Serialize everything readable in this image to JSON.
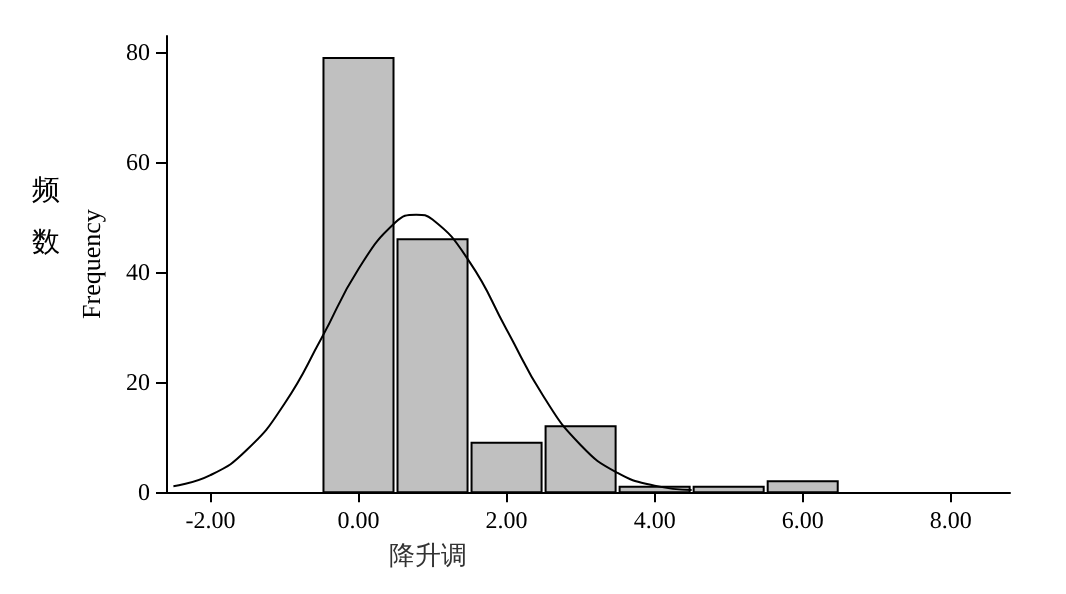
{
  "chart_data": {
    "type": "histogram",
    "xlabel": "降升调",
    "ylabel": "Frequency",
    "annotations": [
      "频数"
    ],
    "bins": [
      -0.5,
      0.5,
      1.5,
      2.5,
      3.5,
      4.5,
      5.5,
      6.5
    ],
    "values": [
      79,
      46,
      9,
      12,
      1,
      1,
      2
    ],
    "color": "#c0c0c0",
    "series": [
      {
        "type": "line",
        "color": "#000000",
        "marker": "none",
        "x": [
          -2.5,
          -2,
          -1.5,
          -1,
          -0.5,
          0,
          0.5,
          0.78,
          1,
          1.5,
          2,
          2.5,
          3,
          3.5,
          4,
          4.5
        ],
        "values": [
          1.1,
          3.1,
          7.8,
          16.1,
          28,
          40.6,
          49.1,
          50.5,
          49.6,
          41.9,
          29.6,
          17.4,
          8.6,
          3.5,
          1.2,
          0.4
        ]
      }
    ],
    "xlim": [
      -2.6,
      8.8
    ],
    "xticks": [
      {
        "value": -2,
        "label": "-2.00"
      },
      {
        "value": 0,
        "label": "0.00"
      },
      {
        "value": 2,
        "label": "2.00"
      },
      {
        "value": 4,
        "label": "4.00"
      },
      {
        "value": 6,
        "label": "6.00"
      },
      {
        "value": 8,
        "label": "8.00"
      }
    ],
    "ylim": [
      0,
      83
    ],
    "yticks": [
      0,
      20,
      40,
      60,
      80
    ],
    "grid": false
  }
}
